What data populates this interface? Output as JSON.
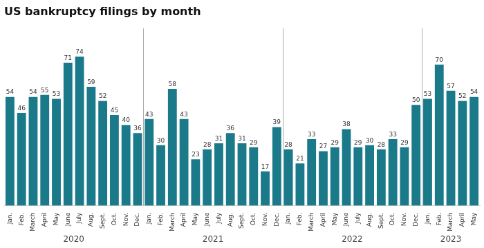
{
  "chart_data": {
    "type": "bar",
    "title": "US bankruptcy filings by month",
    "categories": [
      "Jan.",
      "Feb.",
      "March",
      "April",
      "May",
      "June",
      "July",
      "Aug.",
      "Sept.",
      "Oct.",
      "Nov.",
      "Dec.",
      "Jan.",
      "Feb.",
      "March",
      "April",
      "May",
      "June",
      "July",
      "Aug.",
      "Sept.",
      "Oct.",
      "Nov.",
      "Dec.",
      "Jan.",
      "Feb.",
      "March",
      "April",
      "May",
      "June",
      "July",
      "Aug.",
      "Sept.",
      "Oct.",
      "Nov.",
      "Dec.",
      "Jan.",
      "Feb.",
      "March",
      "April",
      "May"
    ],
    "values": [
      54,
      46,
      54,
      55,
      53,
      71,
      74,
      59,
      52,
      45,
      40,
      36,
      43,
      30,
      58,
      43,
      23,
      28,
      31,
      36,
      31,
      29,
      17,
      39,
      28,
      21,
      33,
      27,
      29,
      38,
      29,
      30,
      28,
      33,
      29,
      50,
      53,
      70,
      57,
      52,
      54
    ],
    "groups": [
      {
        "label": "2020",
        "start": 0,
        "end": 11
      },
      {
        "label": "2021",
        "start": 12,
        "end": 23
      },
      {
        "label": "2022",
        "start": 24,
        "end": 35
      },
      {
        "label": "2023",
        "start": 36,
        "end": 40
      }
    ],
    "color": "#1a7a8a",
    "ylim": [
      0,
      88
    ],
    "grid": false,
    "data_labels": true,
    "tick_labels": "x"
  }
}
